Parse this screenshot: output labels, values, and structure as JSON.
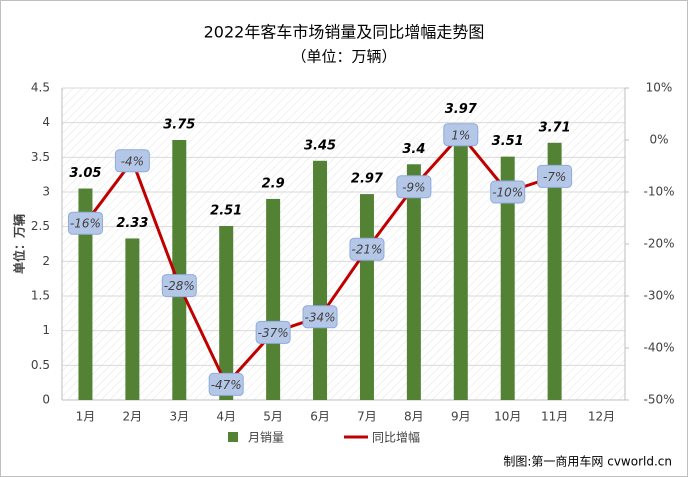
{
  "chart_data": {
    "type": "bar-line",
    "title": "2022年客车市场销量及同比增幅走势图",
    "subtitle": "（单位：万辆）",
    "y_label": "单位：万辆",
    "source": "制图:第一商用车网 cvworld.cn",
    "categories": [
      "1月",
      "2月",
      "3月",
      "4月",
      "5月",
      "6月",
      "7月",
      "8月",
      "9月",
      "10月",
      "11月",
      "12月"
    ],
    "series": [
      {
        "name": "月销量",
        "color": "#548235",
        "type": "bar",
        "values": [
          3.05,
          2.33,
          3.75,
          2.51,
          2.9,
          3.45,
          2.97,
          3.4,
          3.97,
          3.51,
          3.71,
          null
        ]
      },
      {
        "name": "同比增幅",
        "color": "#c00000",
        "type": "line",
        "axis": "y2",
        "values": [
          -16,
          -4,
          -28,
          -47,
          -37,
          -34,
          -21,
          -9,
          1,
          -10,
          -7,
          null
        ],
        "value_labels": [
          "-16%",
          "-4%",
          "-28%",
          "-47%",
          "-37%",
          "-34%",
          "-21%",
          "-9%",
          "1%",
          "-10%",
          "-7%",
          null
        ]
      }
    ],
    "ylim": [
      0,
      4.5
    ],
    "yticks": [
      0,
      0.5,
      1,
      1.5,
      2,
      2.5,
      3,
      3.5,
      4,
      4.5
    ],
    "y2lim": [
      -50,
      10
    ],
    "y2ticks": [
      {
        "value": -50,
        "label": "-50%"
      },
      {
        "value": -40,
        "label": "-40%"
      },
      {
        "value": -30,
        "label": "-30%"
      },
      {
        "value": -20,
        "label": "-20%"
      },
      {
        "value": -10,
        "label": "-10%"
      },
      {
        "value": 0,
        "label": "0%"
      },
      {
        "value": 10,
        "label": "10%"
      }
    ],
    "grid": true,
    "legend": "bottom"
  }
}
